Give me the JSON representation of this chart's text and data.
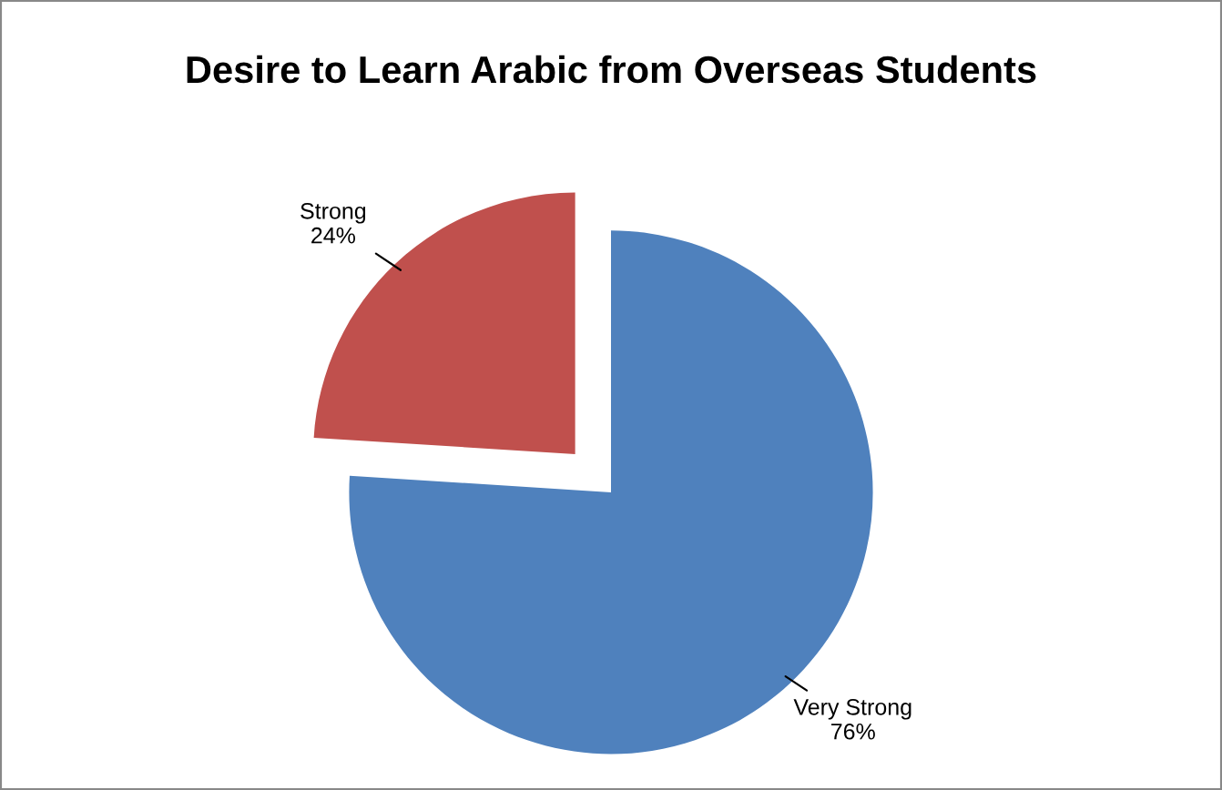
{
  "chart_data": {
    "type": "pie",
    "title": "Desire to Learn Arabic from Overseas Students",
    "categories": [
      "Very Strong",
      "Strong"
    ],
    "values": [
      76,
      24
    ],
    "value_labels": [
      "76%",
      "24%"
    ],
    "colors": [
      "#4f81bd",
      "#c0504d"
    ]
  }
}
